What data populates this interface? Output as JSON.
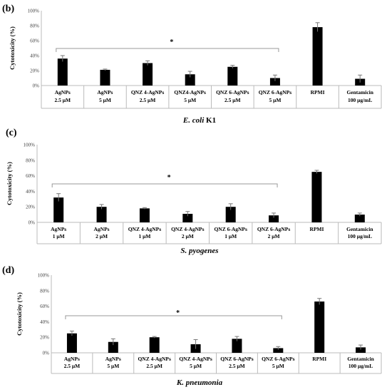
{
  "chart_data": [
    {
      "type": "bar",
      "panel_label": "(b)",
      "organism_italic": "E. coli",
      "organism_suffix": " K1",
      "ylabel": "Cytotoxicity (%)",
      "ylim": [
        0,
        100
      ],
      "y_ticks": [
        "0%",
        "20%",
        "40%",
        "60%",
        "80%",
        "100%"
      ],
      "categories": [
        [
          "AgNPs",
          "2.5 μM"
        ],
        [
          "AgNPs",
          "5 μM"
        ],
        [
          "QNZ 4-AgNPs",
          "2.5 μM"
        ],
        [
          "QNZ4-AgNPs",
          "5 μM"
        ],
        [
          "QNZ 6-AgNPs",
          "2.5 μM"
        ],
        [
          "QNZ 6-AgNPs",
          "5 μM"
        ],
        [
          "RPMI"
        ],
        [
          "Gentamicin",
          "100 μg/mL"
        ]
      ],
      "values": [
        36,
        21,
        30,
        15,
        25,
        10,
        78,
        9
      ],
      "errors": [
        4,
        1,
        3,
        4,
        2,
        4,
        6,
        5
      ],
      "significance": "*",
      "bracket_span": [
        0,
        5
      ],
      "bar_color": "#000000"
    },
    {
      "type": "bar",
      "panel_label": "(c)",
      "organism_italic": "S. pyogenes",
      "organism_suffix": "",
      "ylabel": "Cytotoxicity (%)",
      "ylim": [
        0,
        100
      ],
      "y_ticks": [
        "0%",
        "20%",
        "40%",
        "60%",
        "80%",
        "100%"
      ],
      "categories": [
        [
          "AgNPs",
          "1 μM"
        ],
        [
          "AgNPs",
          "2 μM"
        ],
        [
          "QNZ 4-AgNPs",
          "1 μM"
        ],
        [
          "QNZ 4-AgNPs",
          "2 μM"
        ],
        [
          "QNZ 6-AgNPs",
          "1 μM"
        ],
        [
          "QNZ 6-AgNPs",
          "2 μM"
        ],
        [
          "RPMI"
        ],
        [
          "Gentamicin",
          "100 μg/mL"
        ]
      ],
      "values": [
        32,
        20,
        18,
        11,
        20,
        9,
        65,
        10
      ],
      "errors": [
        5,
        3,
        1,
        3,
        4,
        3,
        2,
        2
      ],
      "significance": "*",
      "bracket_span": [
        0,
        5
      ],
      "bar_color": "#000000"
    },
    {
      "type": "bar",
      "panel_label": "(d)",
      "organism_italic": "K. pneumonia",
      "organism_suffix": "",
      "ylabel": "Cytotoxicity (%)",
      "ylim": [
        0,
        100
      ],
      "y_ticks": [
        "0%",
        "20%",
        "40%",
        "60%",
        "80%",
        "100%"
      ],
      "categories": [
        [
          "AgNPs",
          "2.5 μM"
        ],
        [
          "AgNPs",
          "5 μM"
        ],
        [
          "QNZ 4-AgNPs",
          "2.5 μM"
        ],
        [
          "QNZ 4-AgNPs",
          "5 μM"
        ],
        [
          "QNZ 6-AgNPs",
          "2.5 μM"
        ],
        [
          "QNZ 6-AgNPs",
          "5 μM"
        ],
        [
          "RPMI"
        ],
        [
          "Gentamicin",
          "100 μg/mL"
        ]
      ],
      "values": [
        25,
        14,
        20,
        11,
        18,
        6,
        66,
        7
      ],
      "errors": [
        3,
        4,
        1,
        6,
        3,
        2,
        4,
        3
      ],
      "significance": "*",
      "bracket_span": [
        0,
        5
      ],
      "bar_color": "#000000"
    }
  ]
}
